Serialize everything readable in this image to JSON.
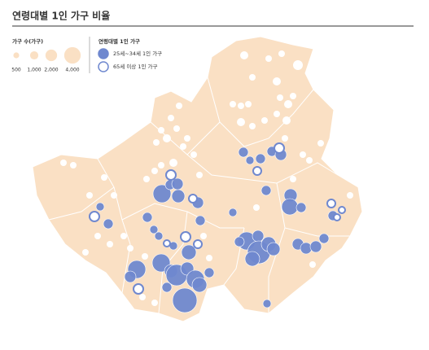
{
  "header": {
    "title": "연령대별 1인 가구 비율"
  },
  "legend": {
    "size": {
      "title": "가구 수(가구)",
      "items": [
        500,
        {
          "value": 1000,
          "label": "1,000"
        },
        {
          "value": 2000,
          "label": "2,000"
        },
        {
          "value": 4000,
          "label": "4,000"
        }
      ]
    },
    "group": {
      "title": "연령대별 1인 가구",
      "items": [
        {
          "label": "25세~34세 1인 가구",
          "color": "#6f88cf"
        },
        {
          "label": "65세 이상 1인 가구",
          "color": "#ffffff"
        }
      ]
    }
  }
}
